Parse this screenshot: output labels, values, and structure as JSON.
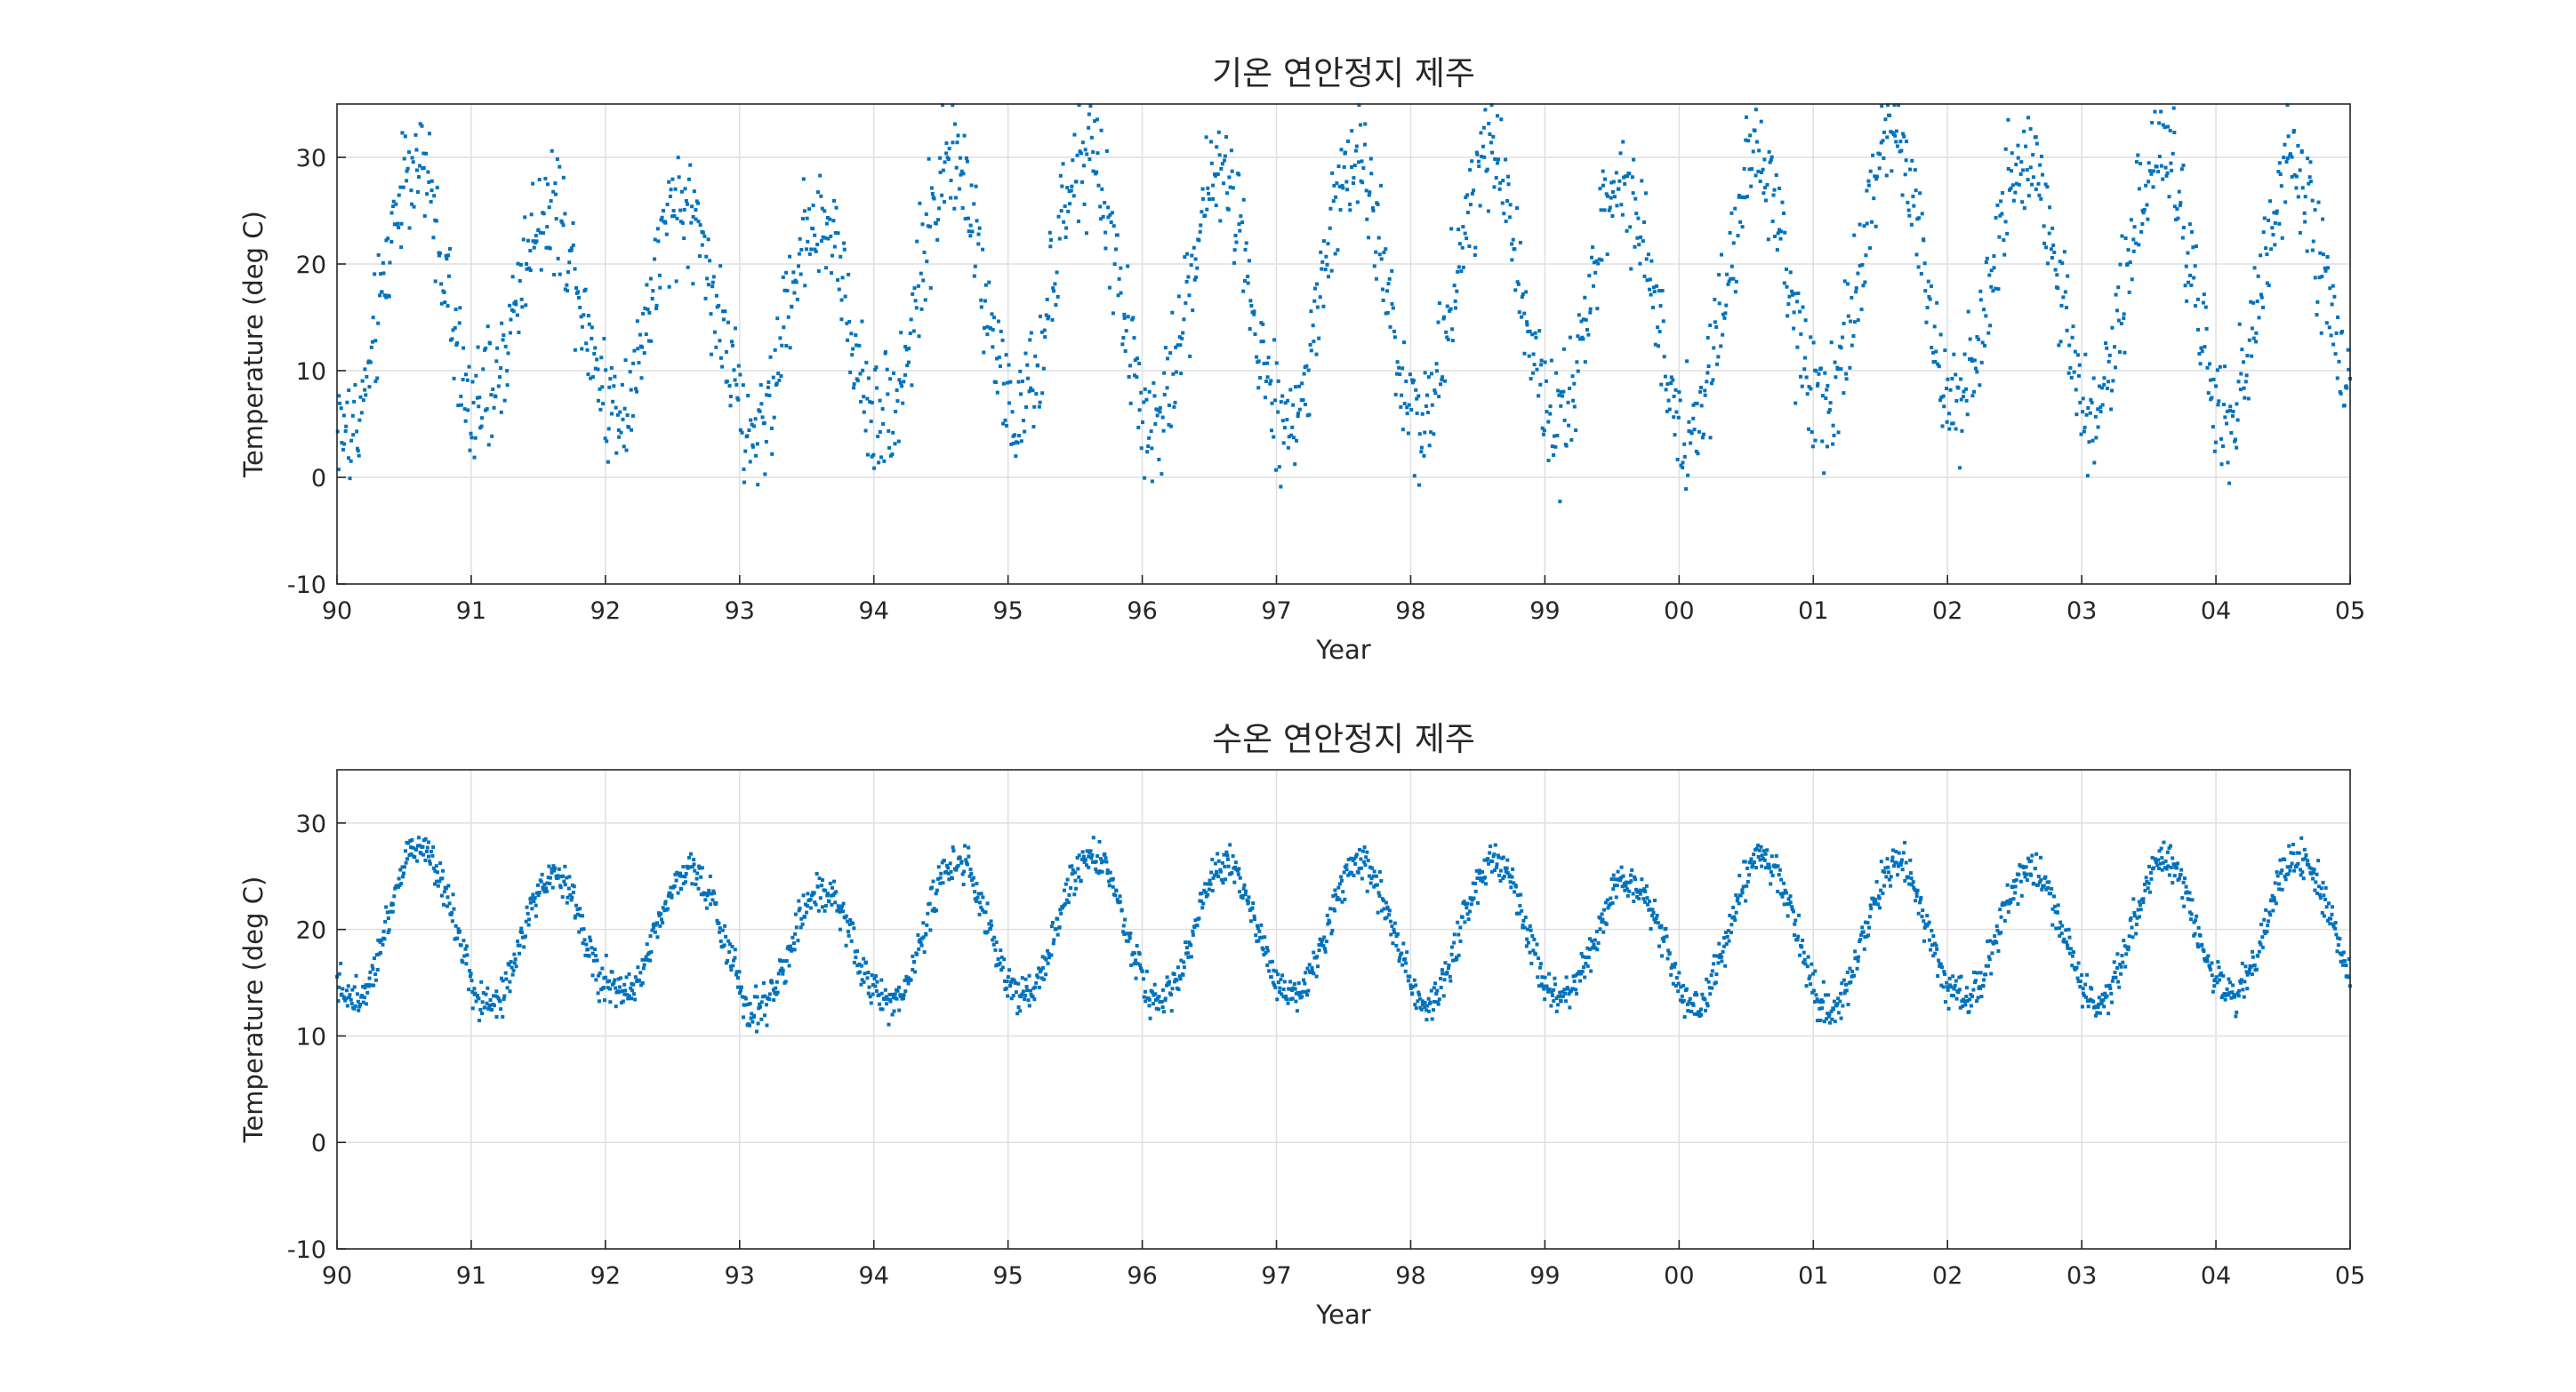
{
  "chart_data": [
    {
      "type": "scatter",
      "title": "기온 연안정지 제주",
      "xlabel": "Year",
      "ylabel": "Temperature (deg C)",
      "xlim": [
        1990,
        2005
      ],
      "ylim": [
        -10,
        35
      ],
      "x_ticks": [
        1990,
        1991,
        1992,
        1993,
        1994,
        1995,
        1996,
        1997,
        1998,
        1999,
        2000,
        2001,
        2002,
        2003,
        2004,
        2005
      ],
      "x_tick_labels": [
        "90",
        "91",
        "92",
        "93",
        "94",
        "95",
        "96",
        "97",
        "98",
        "99",
        "00",
        "01",
        "02",
        "03",
        "04",
        "05"
      ],
      "y_ticks": [
        -10,
        0,
        10,
        20,
        30
      ],
      "y_tick_labels": [
        "-10",
        "0",
        "10",
        "20",
        "30"
      ],
      "grid": true,
      "marker_color": "#0072bd",
      "series": [
        {
          "points_per_year": 150,
          "annual_min": [
            4.0,
            7.0,
            6.5,
            3.5,
            6.0,
            5.5,
            4.5,
            5.0,
            6.0,
            5.0,
            4.0,
            6.0,
            8.0,
            6.0,
            5.0
          ],
          "annual_max": [
            29.5,
            25.5,
            25.5,
            24.5,
            29.5,
            30.0,
            28.5,
            29.5,
            30.5,
            27.5,
            30.0,
            32.5,
            29.5,
            30.5,
            29.5
          ],
          "peak_phase": 0.58,
          "noise": 2.8
        }
      ]
    },
    {
      "type": "scatter",
      "title": "수온 연안정지 제주",
      "xlabel": "Year",
      "ylabel": "Temperature (deg C)",
      "xlim": [
        1990,
        2005
      ],
      "ylim": [
        -10,
        35
      ],
      "x_ticks": [
        1990,
        1991,
        1992,
        1993,
        1994,
        1995,
        1996,
        1997,
        1998,
        1999,
        2000,
        2001,
        2002,
        2003,
        2004,
        2005
      ],
      "x_tick_labels": [
        "90",
        "91",
        "92",
        "93",
        "94",
        "95",
        "96",
        "97",
        "98",
        "99",
        "00",
        "01",
        "02",
        "03",
        "04",
        "05"
      ],
      "y_ticks": [
        -10,
        0,
        10,
        20,
        30
      ],
      "y_tick_labels": [
        "-10",
        "0",
        "10",
        "20",
        "30"
      ],
      "grid": true,
      "marker_color": "#0072bd",
      "series": [
        {
          "points_per_year": 170,
          "annual_min": [
            13.5,
            12.5,
            14.0,
            12.5,
            13.0,
            14.0,
            13.0,
            14.0,
            13.0,
            13.5,
            13.0,
            12.5,
            13.5,
            13.0,
            14.0
          ],
          "annual_max": [
            28.0,
            25.0,
            25.5,
            23.5,
            26.5,
            27.0,
            26.0,
            26.0,
            26.5,
            24.5,
            27.0,
            26.0,
            25.5,
            26.5,
            27.0
          ],
          "peak_phase": 0.62,
          "noise": 0.9
        }
      ]
    }
  ]
}
